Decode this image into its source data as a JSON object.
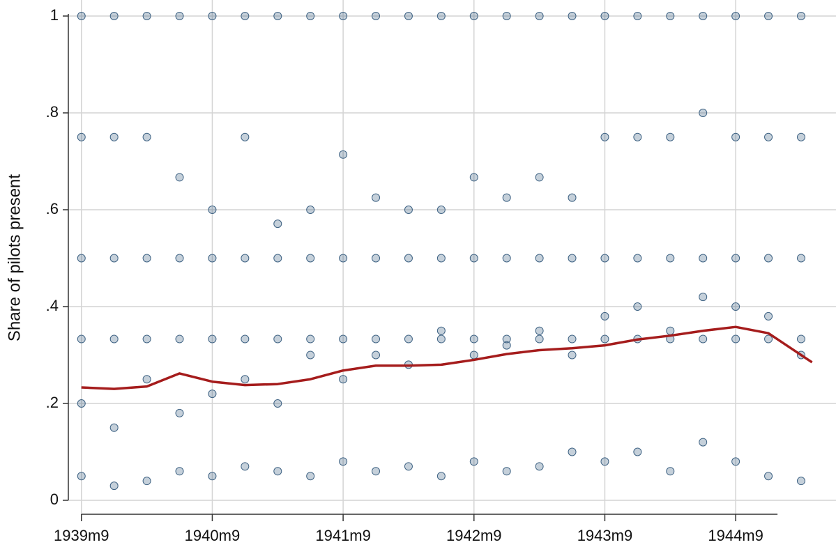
{
  "chart_data": {
    "type": "scatter",
    "y_label": "Share of pilots present",
    "xlim": [
      -245.2,
      -174.8
    ],
    "ylim": [
      -0.0288,
      1.0331
    ],
    "xticks": [
      {
        "value": -244,
        "label": "1939m9"
      },
      {
        "value": -232,
        "label": "1940m9"
      },
      {
        "value": -220,
        "label": "1941m9"
      },
      {
        "value": -208,
        "label": "1942m9"
      },
      {
        "value": -196,
        "label": "1943m9"
      },
      {
        "value": -184,
        "label": "1944m9"
      }
    ],
    "yticks": [
      0,
      {
        "value": 0.2,
        "label": ".2"
      },
      {
        "value": 0.4,
        "label": ".4"
      },
      {
        "value": 0.6,
        "label": ".6"
      },
      {
        "value": 0.8,
        "label": ".8"
      },
      1
    ],
    "grid": true,
    "point_color": "#3e6283",
    "line_color": "#a51c1c",
    "points": {
      "x": [
        -244,
        -244,
        -244,
        -244,
        -244,
        -244,
        -241,
        -241,
        -241,
        -241,
        -241,
        -241,
        -238,
        -238,
        -238,
        -238,
        -238,
        -238,
        -235,
        -235,
        -235,
        -235,
        -235,
        -235,
        -232,
        -232,
        -232,
        -232,
        -232,
        -232,
        -229,
        -229,
        -229,
        -229,
        -229,
        -229,
        -226,
        -226,
        -226,
        -226,
        -226,
        -226,
        -223,
        -223,
        -223,
        -223,
        -223,
        -223,
        -220,
        -220,
        -220,
        -220,
        -220,
        -220,
        -217,
        -217,
        -217,
        -217,
        -217,
        -217,
        -214,
        -214,
        -214,
        -214,
        -214,
        -214,
        -211,
        -211,
        -211,
        -211,
        -211,
        -211,
        -208,
        -208,
        -208,
        -208,
        -208,
        -208,
        -205,
        -205,
        -205,
        -205,
        -205,
        -205,
        -202,
        -202,
        -202,
        -202,
        -202,
        -202,
        -199,
        -199,
        -199,
        -199,
        -199,
        -199,
        -196,
        -196,
        -196,
        -196,
        -196,
        -196,
        -193,
        -193,
        -193,
        -193,
        -193,
        -193,
        -190,
        -190,
        -190,
        -190,
        -190,
        -190,
        -187,
        -187,
        -187,
        -187,
        -187,
        -187,
        -184,
        -184,
        -184,
        -184,
        -184,
        -184,
        -181,
        -181,
        -181,
        -181,
        -181,
        -181,
        -178,
        -178,
        -178,
        -178,
        -178,
        -178
      ],
      "values": [
        1,
        0.5,
        0.333,
        0.75,
        0.2,
        0.05,
        1,
        0.5,
        0.333,
        0.75,
        0.15,
        0.03,
        1,
        0.5,
        0.333,
        0.75,
        0.25,
        0.04,
        1,
        0.5,
        0.333,
        0.667,
        0.18,
        0.06,
        1,
        0.5,
        0.333,
        0.6,
        0.22,
        0.05,
        1,
        0.5,
        0.333,
        0.75,
        0.25,
        0.07,
        1,
        0.5,
        0.333,
        0.571,
        0.2,
        0.06,
        1,
        0.5,
        0.333,
        0.6,
        0.3,
        0.05,
        1,
        0.5,
        0.333,
        0.714,
        0.25,
        0.08,
        1,
        0.5,
        0.333,
        0.625,
        0.3,
        0.06,
        1,
        0.5,
        0.333,
        0.6,
        0.28,
        0.07,
        1,
        0.5,
        0.333,
        0.6,
        0.35,
        0.05,
        1,
        0.5,
        0.333,
        0.667,
        0.3,
        0.08,
        1,
        0.5,
        0.333,
        0.625,
        0.32,
        0.06,
        1,
        0.5,
        0.333,
        0.667,
        0.35,
        0.07,
        1,
        0.5,
        0.333,
        0.625,
        0.3,
        0.1,
        1,
        0.5,
        0.333,
        0.75,
        0.38,
        0.08,
        1,
        0.5,
        0.333,
        0.75,
        0.4,
        0.1,
        1,
        0.5,
        0.333,
        0.75,
        0.35,
        0.06,
        1,
        0.5,
        0.333,
        0.8,
        0.42,
        0.12,
        1,
        0.5,
        0.333,
        0.75,
        0.4,
        0.08,
        1,
        0.5,
        0.333,
        0.75,
        0.38,
        0.05,
        1,
        0.5,
        0.333,
        0.75,
        0.3,
        0.04
      ]
    },
    "fit": {
      "x": [
        -244,
        -241,
        -238,
        -235,
        -232,
        -229,
        -226,
        -223,
        -220,
        -217,
        -214,
        -211,
        -208,
        -205,
        -202,
        -199,
        -196,
        -193,
        -190,
        -187,
        -184,
        -181,
        -178,
        -177
      ],
      "values": [
        0.233,
        0.23,
        0.235,
        0.262,
        0.245,
        0.238,
        0.24,
        0.25,
        0.268,
        0.278,
        0.278,
        0.28,
        0.29,
        0.302,
        0.31,
        0.314,
        0.32,
        0.332,
        0.34,
        0.35,
        0.358,
        0.345,
        0.3,
        0.285
      ]
    }
  }
}
